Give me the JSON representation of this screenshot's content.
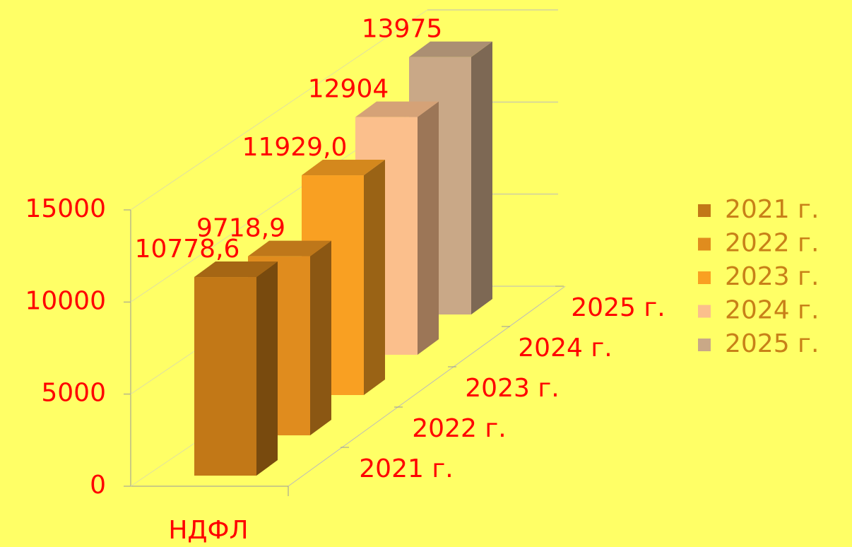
{
  "chart_data": {
    "type": "bar",
    "categories": [
      "НДФЛ"
    ],
    "series": [
      {
        "name": "2021 г.",
        "color": "#c27817",
        "values": [
          10778.6
        ],
        "value_labels": [
          "10778,6"
        ]
      },
      {
        "name": "2022 г.",
        "color": "#e08c1e",
        "values": [
          9718.9
        ],
        "value_labels": [
          "9718,9"
        ]
      },
      {
        "name": "2023 г.",
        "color": "#f9a022",
        "values": [
          11929.0
        ],
        "value_labels": [
          "11929,0"
        ]
      },
      {
        "name": "2024 г.",
        "color": "#fbbf8c",
        "values": [
          12904
        ],
        "value_labels": [
          "12904"
        ]
      },
      {
        "name": "2025 г.",
        "color": "#c9a887",
        "values": [
          13975
        ],
        "value_labels": [
          "13975"
        ]
      }
    ],
    "ylim": [
      0,
      15000
    ],
    "yticks": [
      0,
      5000,
      10000,
      15000
    ],
    "grid": true,
    "legend": "right"
  }
}
